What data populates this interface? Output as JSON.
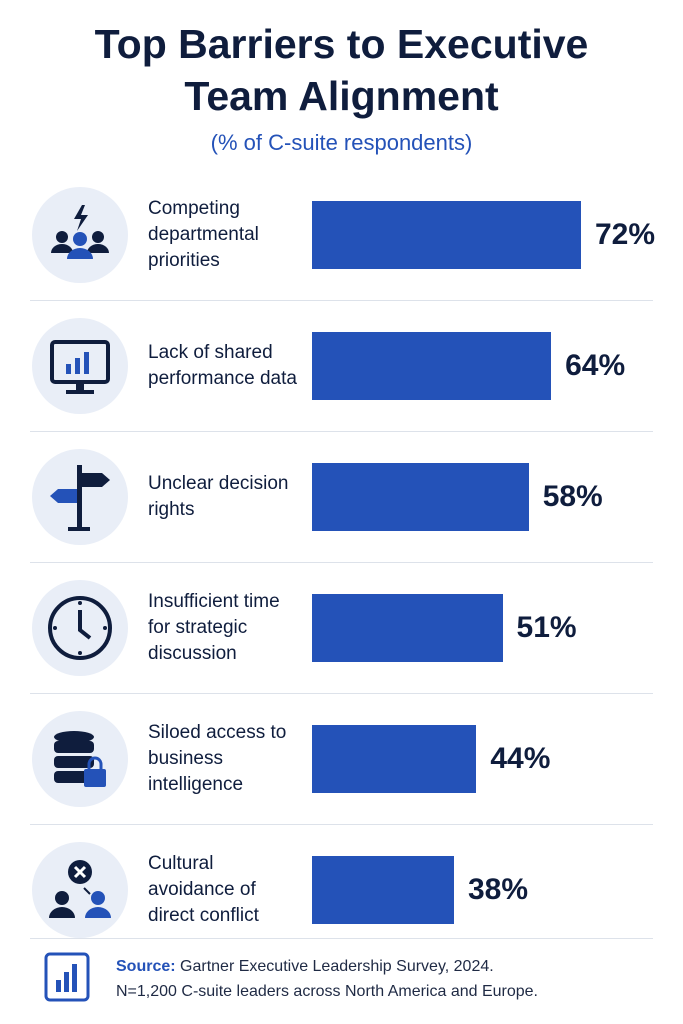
{
  "chart_data": {
    "type": "bar",
    "orientation": "horizontal",
    "title": "Top Barriers to Executive Team Alignment",
    "subtitle": "(% of C-suite respondents)",
    "categories": [
      "Competing departmental priorities",
      "Lack of shared performance data",
      "Unclear decision rights",
      "Insufficient time for strategic discussion",
      "Siloed access to business intelligence",
      "Cultural avoidance of direct conflict"
    ],
    "values": [
      72,
      64,
      58,
      51,
      44,
      38
    ],
    "value_labels": [
      "72%",
      "64%",
      "58%",
      "51%",
      "44%",
      "38%"
    ],
    "color": "#2452b8"
  },
  "footer": {
    "source_label": "Source:",
    "source_text": "Gartner Executive Leadership Survey, 2024.",
    "note": "N=1,200 C-suite leaders across North America and Europe."
  }
}
